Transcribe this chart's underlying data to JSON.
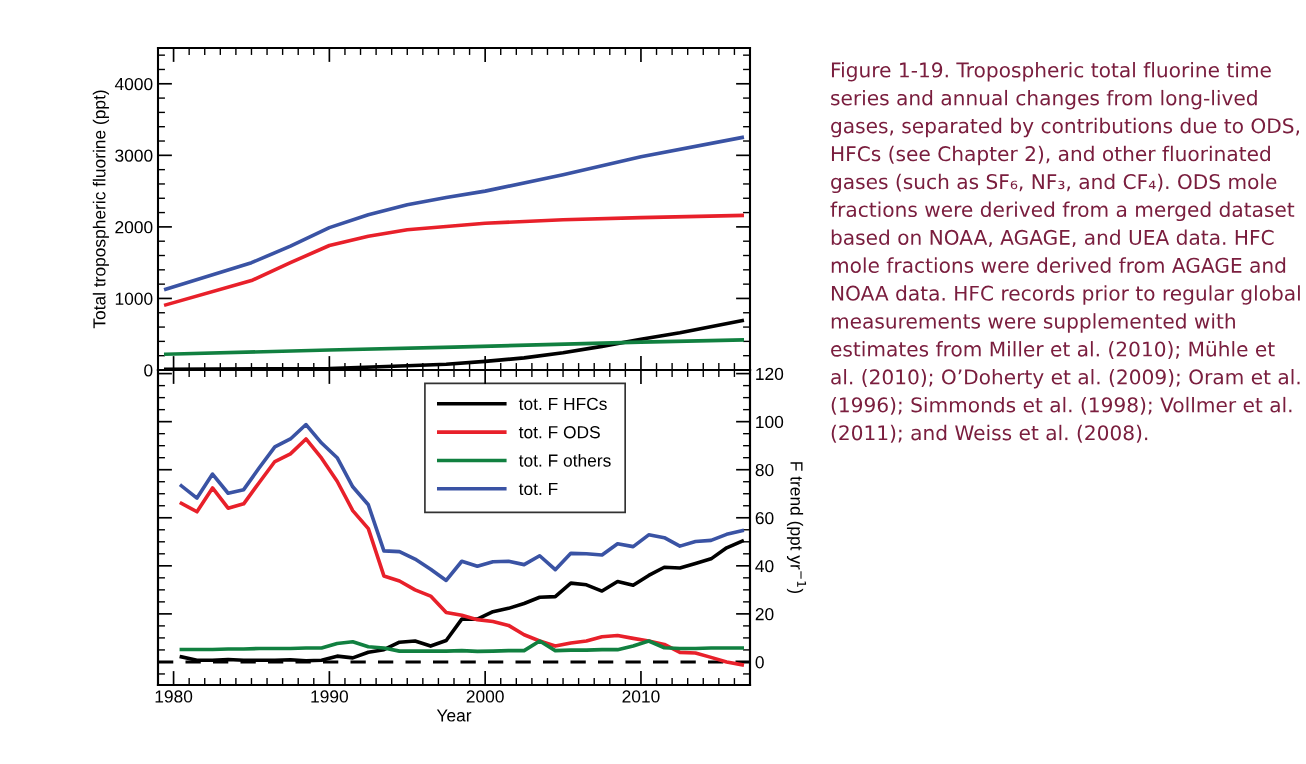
{
  "chart_data": [
    {
      "type": "line",
      "ylabel": "Total tropospheric fluorine (ppt)",
      "xlim": [
        1979,
        2017
      ],
      "xticks": [
        {
          "value": 1980,
          "label": null
        },
        {
          "value": 1990,
          "label": null
        },
        {
          "value": 2000,
          "label": null
        },
        {
          "value": 2010,
          "label": null
        }
      ],
      "ylim": [
        0,
        4500
      ],
      "yticks": [
        0,
        1000,
        2000,
        3000,
        4000
      ],
      "tick_labels": "y",
      "grid": false,
      "legend": false,
      "series": [
        {
          "color": "#000000",
          "x": [
            1979.5,
            1990,
            1995,
            1997.5,
            2000,
            2002.5,
            2005,
            2007.5,
            2010,
            2012.5,
            2016.5
          ],
          "values": [
            10,
            20,
            60,
            80,
            120,
            170,
            240,
            330,
            430,
            520,
            690
          ]
        },
        {
          "color": "#e8202a",
          "x": [
            1979.5,
            1985,
            1987.5,
            1990,
            1992.5,
            1995,
            2000,
            2005,
            2010,
            2016.5
          ],
          "values": [
            910,
            1250,
            1500,
            1740,
            1870,
            1960,
            2050,
            2100,
            2130,
            2160
          ]
        },
        {
          "color": "#118040",
          "x": [
            1979.5,
            1990,
            1998,
            2010,
            2016.5
          ],
          "values": [
            220,
            280,
            320,
            390,
            420
          ]
        },
        {
          "color": "#3a53a4",
          "x": [
            1979.5,
            1985,
            1987.5,
            1990,
            1992.5,
            1995,
            1997.5,
            2000,
            2005,
            2010,
            2016.5
          ],
          "values": [
            1130,
            1500,
            1730,
            1990,
            2170,
            2310,
            2410,
            2500,
            2730,
            2980,
            3250
          ]
        }
      ],
      "annotations": [
        "Figure 1-19. Tropospheric total fluorine time series and annual changes from long-lived gases, separated by contributions due to ODS, HFCs (see Chapter 2), and other fluorinated gases (such as SF₆, NF₃, and CF₄). ODS mole fractions were derived from a merged dataset based on NOAA, AGAGE, and UEA data. HFC mole fractions were derived from AGAGE and NOAA data. HFC records prior to regular global measurements were supplemented with estimates from Miller et al. (2010); Mühle et al. (2010); O’Doherty et al. (2009); Oram et al. (1996); Simmonds et al. (1998); Vollmer et al. (2011); and Weiss et al. (2008)."
      ]
    },
    {
      "type": "line",
      "xlabel": "Year",
      "y2label": "F trend (ppt yr$^{−1}$)",
      "xlim": [
        1979,
        2017
      ],
      "xticks": [
        1980,
        1990,
        2000,
        2010
      ],
      "y2lim": [
        -9.6,
        121.5
      ],
      "y2ticks": [
        0,
        20,
        40,
        60,
        80,
        100,
        120
      ],
      "grid": false,
      "legend": "top",
      "x": [
        1980.5,
        1981.5,
        1982.5,
        1983.5,
        1984.5,
        1985.5,
        1986.5,
        1987.5,
        1988.5,
        1989.5,
        1990.5,
        1991.5,
        1992.5,
        1993.5,
        1994.5,
        1995.5,
        1996.5,
        1997.5,
        1998.5,
        1999.5,
        2000.5,
        2001.5,
        2002.5,
        2003.5,
        2004.5,
        2005.5,
        2006.5,
        2007.5,
        2008.5,
        2009.5,
        2010.5,
        2011.5,
        2012.5,
        2013.5,
        2014.5,
        2015.5,
        2016.5
      ],
      "ref_lines": [
        {
          "axis": "y2",
          "value": 0,
          "color": "#000000",
          "line_style": "dashed"
        }
      ],
      "series": [
        {
          "name": "tot. F HFCs",
          "color": "#000000",
          "axis": "y2",
          "values": [
            2.1,
            0.7,
            0.7,
            1.0,
            0.7,
            0.7,
            0.7,
            0.9,
            0.5,
            0.7,
            2.4,
            1.7,
            4.0,
            5.1,
            8.2,
            8.7,
            6.6,
            8.9,
            17.8,
            17.8,
            20.9,
            22.3,
            24.3,
            26.9,
            27.2,
            32.8,
            32.1,
            29.5,
            33.5,
            31.9,
            36.0,
            39.4,
            39.1,
            41.0,
            42.9,
            47.5,
            50.3
          ]
        },
        {
          "name": "tot. F ODS",
          "color": "#e8202a",
          "axis": "y2",
          "values": [
            66.0,
            62.5,
            72.4,
            64.0,
            65.8,
            74.7,
            83.4,
            86.6,
            92.8,
            84.8,
            75.2,
            63.0,
            55.5,
            35.8,
            33.7,
            30.0,
            27.4,
            20.6,
            19.4,
            17.6,
            16.8,
            15.2,
            11.3,
            8.7,
            6.6,
            7.9,
            8.7,
            10.5,
            11.0,
            9.8,
            8.7,
            7.3,
            4.0,
            3.7,
            1.9,
            0.0,
            -1.2
          ]
        },
        {
          "name": "tot. F others",
          "color": "#118040",
          "axis": "y2",
          "values": [
            5.2,
            5.2,
            5.2,
            5.4,
            5.4,
            5.6,
            5.6,
            5.6,
            5.8,
            5.8,
            7.7,
            8.4,
            6.3,
            5.8,
            4.5,
            4.5,
            4.5,
            4.5,
            4.7,
            4.4,
            4.5,
            4.7,
            4.7,
            8.7,
            4.7,
            4.9,
            4.9,
            5.1,
            5.1,
            6.6,
            8.7,
            5.9,
            5.6,
            5.6,
            5.8,
            5.8,
            5.8
          ]
        },
        {
          "name": "tot. F",
          "color": "#3a53a4",
          "axis": "y2",
          "values": [
            73.3,
            68.2,
            78.2,
            70.2,
            71.7,
            80.8,
            89.5,
            92.8,
            98.8,
            91.1,
            85.0,
            72.9,
            65.4,
            46.2,
            45.9,
            42.8,
            38.6,
            33.9,
            41.9,
            39.8,
            41.7,
            41.9,
            40.5,
            44.2,
            38.4,
            45.2,
            45.0,
            44.5,
            49.2,
            48.0,
            52.9,
            51.7,
            48.2,
            50.1,
            50.6,
            53.1,
            54.6
          ]
        }
      ]
    }
  ]
}
